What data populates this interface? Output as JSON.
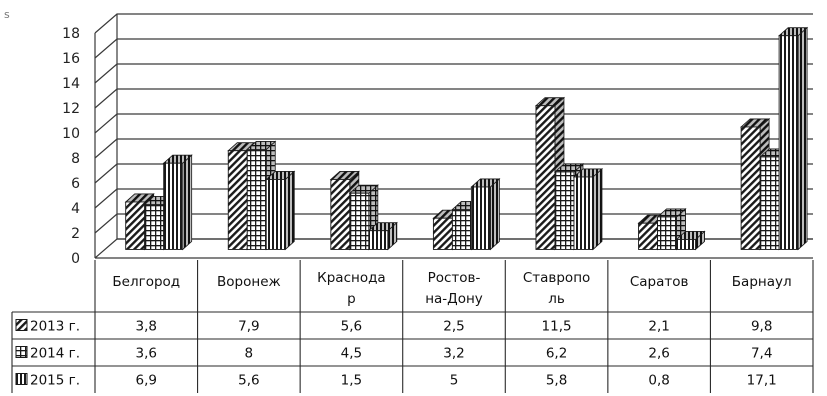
{
  "corner_mark": "s",
  "chart_data": {
    "type": "bar",
    "three_d": true,
    "title": "",
    "xlabel": "",
    "ylabel": "",
    "ylim": [
      0,
      18
    ],
    "ytick_step": 2,
    "yticks": [
      "0",
      "2",
      "4",
      "6",
      "8",
      "10",
      "12",
      "14",
      "16",
      "18"
    ],
    "grid": true,
    "legend_placement": "data-table-left",
    "categories": [
      "Белгород",
      "Воронеж",
      "Краснода р",
      "Ростов- на-Дону",
      "Ставропо ль",
      "Саратов",
      "Барнаул"
    ],
    "category_lines": [
      [
        "Белгород"
      ],
      [
        "Воронеж"
      ],
      [
        "Краснода",
        "р"
      ],
      [
        "Ростов-",
        "на-Дону"
      ],
      [
        "Ставропо",
        "ль"
      ],
      [
        "Саратов"
      ],
      [
        "Барнаул"
      ]
    ],
    "series": [
      {
        "name": "2013 г.",
        "pattern": "diagonal-hatch",
        "values": [
          3.8,
          7.9,
          5.6,
          2.5,
          11.5,
          2.1,
          9.8
        ],
        "labels": [
          "3,8",
          "7,9",
          "5,6",
          "2,5",
          "11,5",
          "2,1",
          "9,8"
        ]
      },
      {
        "name": "2014 г.",
        "pattern": "grid-hatch",
        "values": [
          3.6,
          8,
          4.5,
          3.2,
          6.2,
          2.6,
          7.4
        ],
        "labels": [
          "3,6",
          "8",
          "4,5",
          "3,2",
          "6,2",
          "2,6",
          "7,4"
        ]
      },
      {
        "name": "2015 г.",
        "pattern": "vertical-hatch",
        "values": [
          6.9,
          5.6,
          1.5,
          5,
          5.8,
          0.8,
          17.1
        ],
        "labels": [
          "6,9",
          "5,6",
          "1,5",
          "5",
          "5,8",
          "0,8",
          "17,1"
        ]
      }
    ],
    "colors": {
      "ink": "#1a1a1a",
      "grid": "#3a3a3a",
      "fill": "#ffffff"
    }
  }
}
